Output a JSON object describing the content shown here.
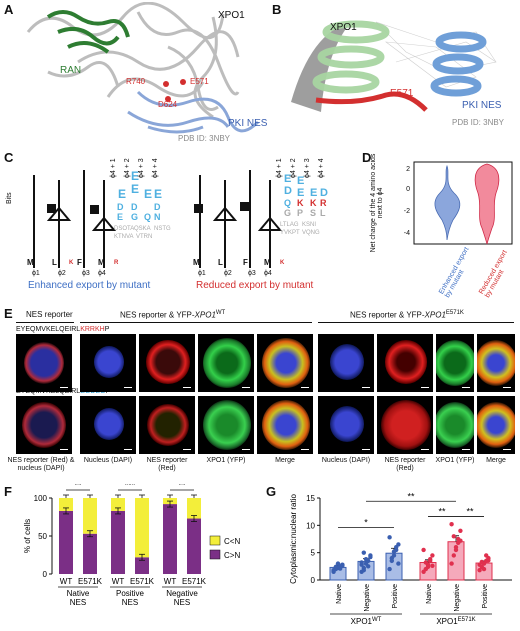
{
  "panels": {
    "A": {
      "label": "A",
      "xpo1": "XPO1",
      "ran": "RAN",
      "r740": "R740",
      "e571": "E571",
      "d624": "D624",
      "pki_nes": "PKI NES",
      "pdb": "PDB ID: 3NBY"
    },
    "B": {
      "label": "B",
      "xpo1": "XPO1",
      "e571": "E571",
      "pki_nes": "PKI NES",
      "pdb": "PDB ID: 3NBY"
    },
    "C": {
      "label": "C",
      "ylabel": "Bits",
      "phi_labels": [
        "ϕ1",
        "ϕ2",
        "ϕ3",
        "ϕ4"
      ],
      "after_labels": [
        "ϕ4 + 1",
        "ϕ4 + 2",
        "ϕ4 + 3",
        "ϕ4 + 4"
      ],
      "left_caption": "Enhanced export by mutant",
      "right_caption": "Reduced export by mutant"
    },
    "D": {
      "label": "D",
      "ylabel": "Net charge of the 4 amino acids next to ϕ4",
      "yticks": [
        "2",
        "0",
        "-2",
        "-4"
      ],
      "xlabels": [
        "Enhanced export by mutant",
        "Reduced export by mutant"
      ]
    },
    "E": {
      "label": "E",
      "header_reporter": "NES reporter",
      "header_wt_a": "NES reporter & YFP-",
      "header_wt_b": "XPO1",
      "header_wt_sup": "WT",
      "header_mut_a": "NES reporter & YFP-",
      "header_mut_b": "XPO1",
      "header_mut_sup": "E571K",
      "seq1_black": "EYEQMVKELQEIRL",
      "seq1_red": "KRRKH",
      "seq1_end": "P",
      "seq2_black": "EYEQMVKELQEIRL",
      "seq2_blue": "EGDEG",
      "seq2_end": "P",
      "captions": [
        "NES reporter (Red) & nucleus (DAPI)",
        "Nucleus (DAPI)",
        "NES reporter (Red)",
        "XPO1 (YFP)",
        "Merge",
        "Nucleus (DAPI)",
        "NES reporter (Red)",
        "XPO1 (YFP)",
        "Merge"
      ]
    },
    "F": {
      "label": "F"
    },
    "G": {
      "label": "G"
    }
  },
  "chart_data": [
    {
      "type": "bar",
      "title": "",
      "ylabel": "% of cells",
      "ylim": [
        0,
        100
      ],
      "yticks": [
        0,
        50,
        100
      ],
      "categories": [
        "WT",
        "E571K",
        "WT",
        "E571K",
        "WT",
        "E571K"
      ],
      "groups": [
        "Native NES",
        "Positive NES",
        "Negative NES"
      ],
      "series": [
        {
          "name": "C<N",
          "color": "#f3ee3a",
          "values": [
            17,
            47,
            17,
            78,
            8,
            27
          ]
        },
        {
          "name": "C>N",
          "color": "#7b2f86",
          "values": [
            83,
            53,
            83,
            22,
            92,
            73
          ]
        }
      ],
      "significance": [
        "**",
        "***",
        "**"
      ],
      "stacked": true,
      "legend": "right"
    },
    {
      "type": "scatter",
      "title": "",
      "ylabel": "Cytoplasmic:nuclear ratio",
      "ylim": [
        0,
        15
      ],
      "yticks": [
        0,
        5,
        10,
        15
      ],
      "categories": [
        "Native",
        "Negative",
        "Positive",
        "Native",
        "Negative",
        "Positive"
      ],
      "groups": [
        "XPO1WT",
        "XPO1E571K"
      ],
      "group_labels": [
        {
          "base": "XPO1",
          "sup": "WT"
        },
        {
          "base": "XPO1",
          "sup": "E571K"
        }
      ],
      "bar_means": [
        2.3,
        3.4,
        4.9,
        3.2,
        7.0,
        3.1
      ],
      "bar_sem": [
        0.3,
        0.5,
        0.9,
        0.5,
        1.1,
        0.4
      ],
      "bar_colors": [
        "#3a5fb0",
        "#3a5fb0",
        "#3a5fb0",
        "#e0304e",
        "#e0304e",
        "#e0304e"
      ],
      "bar_fills": [
        "#a9bde6",
        "#a9bde6",
        "#a9bde6",
        "#f5a9bb",
        "#f5a9bb",
        "#f5a9bb"
      ],
      "points": [
        [
          1.5,
          2.0,
          2.2,
          2.5,
          2.8,
          1.8,
          2.4,
          3.0,
          2.1,
          2.6
        ],
        [
          1.5,
          2.2,
          3.0,
          3.5,
          4.2,
          2.8,
          5.0,
          3.8,
          2.5,
          4.5,
          3.2,
          1.8
        ],
        [
          2.0,
          3.5,
          4.5,
          5.5,
          6.5,
          7.8,
          4.0,
          5.2,
          6.0,
          3.0
        ],
        [
          1.5,
          2.0,
          2.8,
          3.5,
          4.5,
          5.5,
          3.2,
          2.4,
          3.8,
          2.6
        ],
        [
          3.0,
          4.5,
          6.0,
          7.5,
          9.0,
          10.2,
          8.0,
          5.5,
          6.8,
          7.2
        ],
        [
          1.8,
          2.4,
          3.0,
          3.5,
          4.0,
          2.8,
          3.3,
          2.0,
          4.5,
          3.6
        ]
      ],
      "significance": [
        {
          "from": 0,
          "to": 2,
          "label": "*"
        },
        {
          "from": 1,
          "to": 4,
          "label": "**"
        },
        {
          "from": 3,
          "to": 4,
          "label": "**"
        },
        {
          "from": 4,
          "to": 5,
          "label": "**"
        }
      ]
    }
  ],
  "colors": {
    "xpo1": "#c9c9c9",
    "ran": "#2e7d32",
    "nes": "#7e9fd6",
    "red": "#d32f2f",
    "enhanced": "#3e6fc4",
    "reduced": "#e0304e"
  }
}
